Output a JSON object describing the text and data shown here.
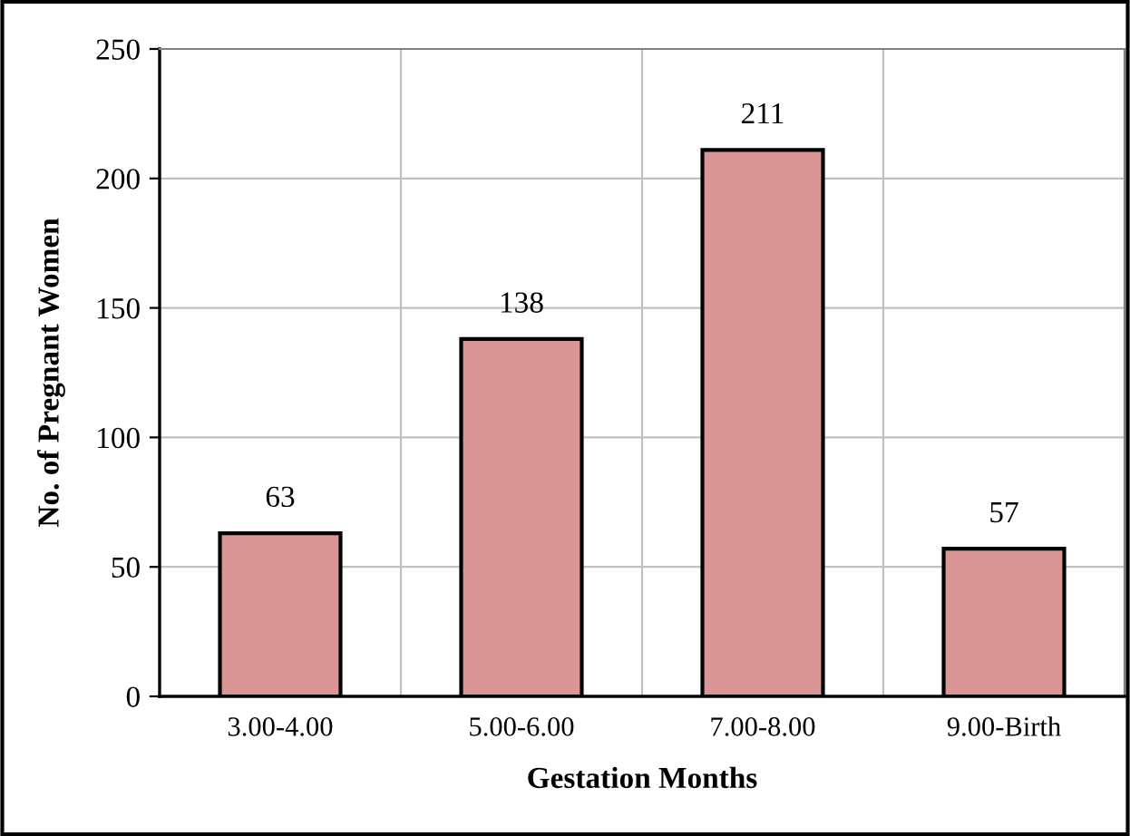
{
  "chart_data": {
    "type": "bar",
    "xlabel": "Gestation Months",
    "ylabel": "No. of Pregnant Women",
    "categories": [
      "3.00-4.00",
      "5.00-6.00",
      "7.00-8.00",
      "9.00-Birth"
    ],
    "values": [
      63,
      138,
      211,
      57
    ],
    "color": "#d99694",
    "ylim": [
      0,
      250
    ],
    "yticks": [
      0,
      50,
      100,
      150,
      200,
      250
    ],
    "grid": true,
    "data_labels": true
  }
}
